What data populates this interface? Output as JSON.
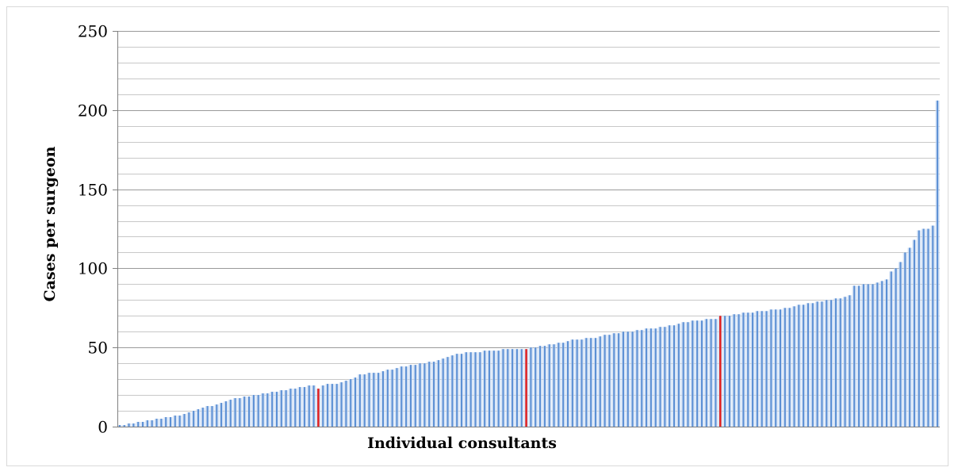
{
  "chart_data": {
    "type": "bar",
    "title": "",
    "xlabel": "Individual consultants",
    "ylabel": "Cases per surgeon",
    "ylim": [
      0,
      250
    ],
    "yticks": [
      0,
      50,
      100,
      150,
      200,
      250
    ],
    "major_grid_step": 50,
    "minor_grid_step": 10,
    "grid": true,
    "legend": "none",
    "bar_color": "#5b8fd4",
    "bar_fill_light": "#c5d8f2",
    "highlight_color": "#e02020",
    "highlight_indices": [
      43,
      88,
      130
    ],
    "values": [
      1,
      1,
      2,
      2,
      3,
      3,
      4,
      4,
      5,
      5,
      6,
      6,
      7,
      7,
      8,
      9,
      10,
      11,
      12,
      13,
      13,
      14,
      15,
      16,
      17,
      18,
      18,
      19,
      19,
      20,
      20,
      21,
      21,
      22,
      22,
      23,
      23,
      24,
      24,
      25,
      25,
      26,
      26,
      24,
      26,
      27,
      27,
      27,
      28,
      29,
      30,
      31,
      33,
      33,
      34,
      34,
      34,
      35,
      36,
      36,
      37,
      38,
      38,
      39,
      39,
      40,
      40,
      41,
      41,
      42,
      43,
      44,
      45,
      46,
      46,
      47,
      47,
      47,
      47,
      48,
      48,
      48,
      48,
      49,
      49,
      49,
      49,
      49,
      49,
      50,
      50,
      51,
      51,
      52,
      52,
      53,
      53,
      54,
      55,
      55,
      55,
      56,
      56,
      56,
      57,
      58,
      58,
      59,
      59,
      60,
      60,
      60,
      61,
      61,
      62,
      62,
      62,
      63,
      63,
      64,
      64,
      65,
      66,
      66,
      67,
      67,
      67,
      68,
      68,
      68,
      70,
      70,
      70,
      71,
      71,
      72,
      72,
      72,
      73,
      73,
      73,
      74,
      74,
      74,
      75,
      75,
      76,
      77,
      77,
      78,
      78,
      79,
      79,
      80,
      80,
      81,
      81,
      82,
      83,
      89,
      89,
      90,
      90,
      90,
      91,
      92,
      93,
      98,
      100,
      104,
      110,
      113,
      118,
      124,
      125,
      125,
      127,
      206
    ]
  }
}
